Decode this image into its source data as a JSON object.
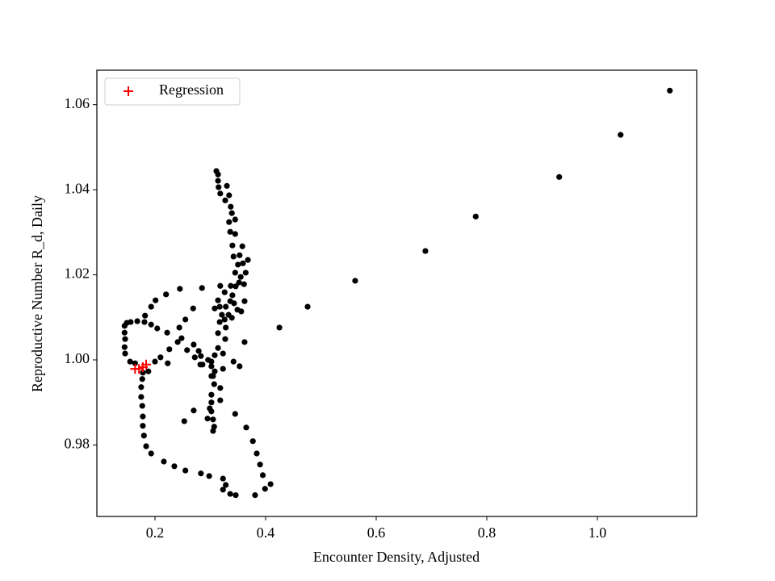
{
  "chart_data": {
    "type": "scatter",
    "xlabel": "Encounter Density, Adjusted",
    "ylabel": "Reproductive Number R_d, Daily",
    "xlim": [
      0.0949,
      1.1796
    ],
    "ylim": [
      0.9632,
      1.0681
    ],
    "xticks": [
      0.2,
      0.4,
      0.6,
      0.8,
      {
        "value": 1,
        "label": "1.0"
      }
    ],
    "yticks": [
      0.98,
      {
        "value": 1,
        "label": "1.00"
      },
      1.02,
      1.04,
      1.06
    ],
    "legend_loc": "upper left",
    "series": [
      {
        "color": "#000000",
        "marker": "o",
        "x": [
          1.131,
          1.042,
          0.931,
          0.78,
          0.689,
          0.562,
          0.476,
          0.425,
          0.362,
          0.323,
          0.302,
          0.282,
          0.302,
          0.318,
          0.318,
          0.345,
          0.365,
          0.377,
          0.384,
          0.39,
          0.395,
          0.409,
          0.399,
          0.381,
          0.346,
          0.336,
          0.328,
          0.323,
          0.323,
          0.298,
          0.283,
          0.255,
          0.235,
          0.216,
          0.193,
          0.184,
          0.18,
          0.178,
          0.178,
          0.177,
          0.175,
          0.175,
          0.177,
          0.178,
          0.188,
          0.164,
          0.155,
          0.146,
          0.145,
          0.146,
          0.145,
          0.145,
          0.149,
          0.156,
          0.168,
          0.181,
          0.193,
          0.204,
          0.222,
          0.241,
          0.258,
          0.272,
          0.286,
          0.302,
          0.182,
          0.193,
          0.201,
          0.22,
          0.245,
          0.285,
          0.311,
          0.314,
          0.314,
          0.315,
          0.318,
          0.33,
          0.334,
          0.327,
          0.337,
          0.339,
          0.334,
          0.345,
          0.336,
          0.345,
          0.358,
          0.34,
          0.353,
          0.342,
          0.359,
          0.368,
          0.35,
          0.345,
          0.364,
          0.355,
          0.337,
          0.346,
          0.318,
          0.326,
          0.34,
          0.361,
          0.352,
          0.343,
          0.336,
          0.328,
          0.317,
          0.314,
          0.308,
          0.321,
          0.333,
          0.326,
          0.317,
          0.339,
          0.356,
          0.362,
          0.349,
          0.328,
          0.314,
          0.327,
          0.314,
          0.308,
          0.305,
          0.307,
          0.302,
          0.302,
          0.299,
          0.302,
          0.305,
          0.307,
          0.305,
          0.295,
          0.253,
          0.27,
          0.323,
          0.342,
          0.353,
          0.308,
          0.296,
          0.283,
          0.279,
          0.27,
          0.248,
          0.226,
          0.21,
          0.2,
          0.223,
          0.269,
          0.244,
          0.255
        ],
        "values": [
          1.0633,
          1.0529,
          1.043,
          1.0337,
          1.0256,
          1.0186,
          1.0125,
          1.0076,
          1.0042,
          1.0015,
          0.9996,
          0.9989,
          0.9962,
          0.9934,
          0.9905,
          0.9873,
          0.9841,
          0.9809,
          0.978,
          0.9754,
          0.9729,
          0.9708,
          0.9697,
          0.9682,
          0.9682,
          0.9685,
          0.9706,
          0.9695,
          0.9721,
          0.9727,
          0.9733,
          0.974,
          0.975,
          0.9761,
          0.978,
          0.9797,
          0.9822,
          0.9845,
          0.9867,
          0.9892,
          0.9913,
          0.9936,
          0.9955,
          0.997,
          0.9973,
          0.9992,
          0.9996,
          1.0015,
          1.003,
          1.0049,
          1.0064,
          1.008,
          1.0087,
          1.0089,
          1.0091,
          1.0089,
          1.0083,
          1.0074,
          1.0064,
          1.0042,
          1.0023,
          1.0006,
          0.9989,
          0.9985,
          1.0104,
          1.0125,
          1.014,
          1.0154,
          1.0167,
          1.0169,
          1.0444,
          1.0436,
          1.0421,
          1.0406,
          1.0391,
          1.0409,
          1.0387,
          1.0375,
          1.036,
          1.0345,
          1.0324,
          1.033,
          1.0301,
          1.0296,
          1.0267,
          1.0269,
          1.0246,
          1.0243,
          1.0227,
          1.0235,
          1.0224,
          1.0205,
          1.0205,
          1.0195,
          1.0174,
          1.0173,
          1.0174,
          1.0159,
          1.0152,
          1.0178,
          1.0182,
          1.0133,
          1.0138,
          1.0125,
          1.0125,
          1.014,
          1.0121,
          1.0106,
          1.0106,
          1.0095,
          1.0089,
          1.0099,
          1.0114,
          1.0138,
          1.0118,
          1.0076,
          1.0063,
          1.0049,
          1.0028,
          1.0011,
          0.9962,
          0.9943,
          0.9918,
          0.99,
          0.9886,
          0.9879,
          0.986,
          0.9843,
          0.9833,
          0.9862,
          0.9856,
          0.9881,
          0.9979,
          0.9996,
          0.9985,
          0.9973,
          1.0,
          1.0009,
          1.0021,
          1.0036,
          1.0051,
          1.0025,
          1.0006,
          0.9996,
          0.9992,
          1.0121,
          1.0076,
          1.0095
        ]
      },
      {
        "name": "Regression",
        "color": "#ff0000",
        "marker": "+",
        "x": [
          0.164,
          0.171,
          0.184,
          0.178
        ],
        "values": [
          0.9979,
          0.9979,
          0.9989,
          0.9983
        ]
      }
    ]
  }
}
